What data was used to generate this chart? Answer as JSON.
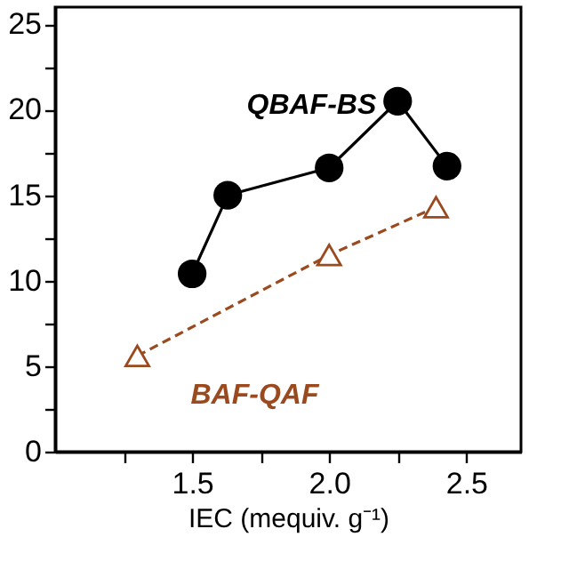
{
  "chart_data": {
    "type": "line",
    "xlabel": "IEC (mequiv. g⁻¹)",
    "xlim": [
      1.0,
      2.7
    ],
    "xticks": [
      {
        "value": 1.25,
        "label": null
      },
      1.5,
      {
        "value": 1.75,
        "label": null
      },
      {
        "value": 2,
        "label": "2.0"
      },
      {
        "value": 2.25,
        "label": null
      },
      2.5
    ],
    "ylim": [
      0,
      26
    ],
    "yticks": [
      0,
      {
        "value": 2.5,
        "label": null
      },
      5,
      {
        "value": 7.5,
        "label": null
      },
      10,
      {
        "value": 12.5,
        "label": null
      },
      15,
      {
        "value": 17.5,
        "label": null
      },
      20,
      {
        "value": 22.5,
        "label": null
      },
      25
    ],
    "grid": false,
    "series": [
      {
        "name": "QBAF-BS",
        "color": "#000000",
        "marker": "circle",
        "line_style": "solid",
        "x": [
          1.5,
          1.63,
          2.0,
          2.25,
          2.43
        ],
        "values": [
          10.4,
          15.0,
          16.6,
          20.5,
          16.7
        ]
      },
      {
        "name": "BAF-QAF",
        "color": "#9a4a1e",
        "marker": "triangle",
        "line_style": "dashed",
        "x": [
          1.3,
          2.0,
          2.39
        ],
        "values": [
          5.6,
          11.5,
          14.3
        ]
      }
    ]
  }
}
